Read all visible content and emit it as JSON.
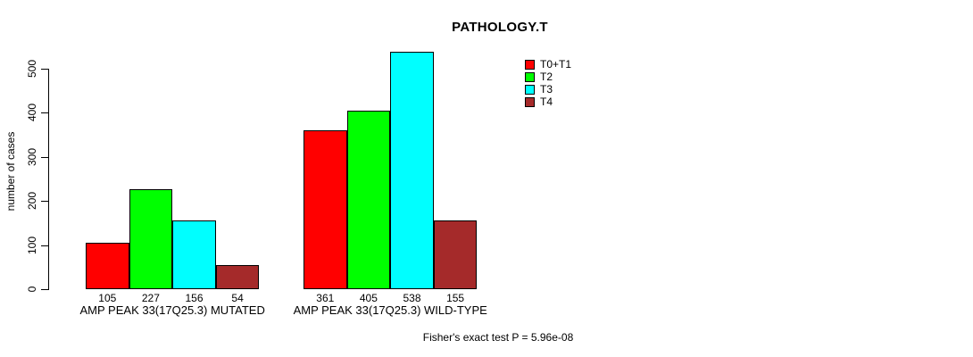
{
  "page": {
    "background_color": "#ffffff",
    "text_color": "#000000"
  },
  "chart_data": {
    "type": "bar",
    "title": "PATHOLOGY.T",
    "ylabel": "number of cases",
    "xlabel": "",
    "ylim": [
      0,
      500
    ],
    "yticks": [
      0,
      100,
      200,
      300,
      400,
      500
    ],
    "grid": false,
    "legend_position": "top-right",
    "bar_value_labels": true,
    "categories": [
      "AMP PEAK 33(17Q25.3) MUTATED",
      "AMP PEAK 33(17Q25.3) WILD-TYPE"
    ],
    "series": [
      {
        "name": "T0+T1",
        "color": "#ff0000",
        "values": [
          105,
          361
        ]
      },
      {
        "name": "T2",
        "color": "#00ff00",
        "values": [
          227,
          405
        ]
      },
      {
        "name": "T3",
        "color": "#00ffff",
        "values": [
          156,
          538
        ]
      },
      {
        "name": "T4",
        "color": "#a52a2a",
        "values": [
          54,
          155
        ]
      }
    ],
    "annotation": "Fisher's exact test P = 5.96e-08"
  }
}
